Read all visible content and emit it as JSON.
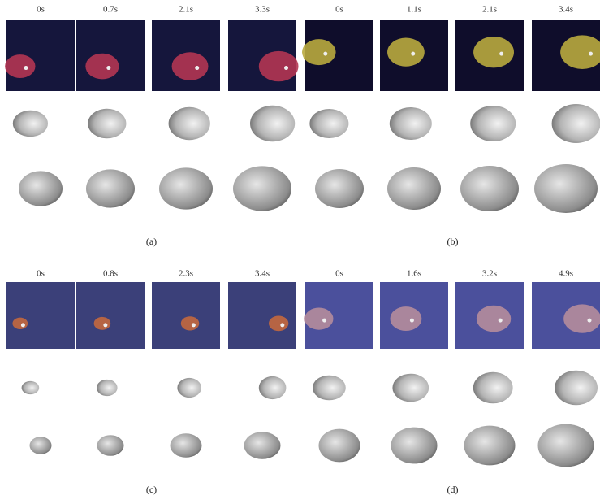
{
  "panels": [
    {
      "label": "(a)",
      "times": [
        "0s",
        "0.7s",
        "2.1s",
        "3.3s"
      ]
    },
    {
      "label": "(b)",
      "times": [
        "0s",
        "1.1s",
        "2.1s",
        "3.4s"
      ]
    },
    {
      "label": "(c)",
      "times": [
        "0s",
        "0.8s",
        "2.3s",
        "3.4s"
      ]
    },
    {
      "label": "(d)",
      "times": [
        "0s",
        "1.6s",
        "3.2s",
        "4.9s"
      ]
    }
  ]
}
